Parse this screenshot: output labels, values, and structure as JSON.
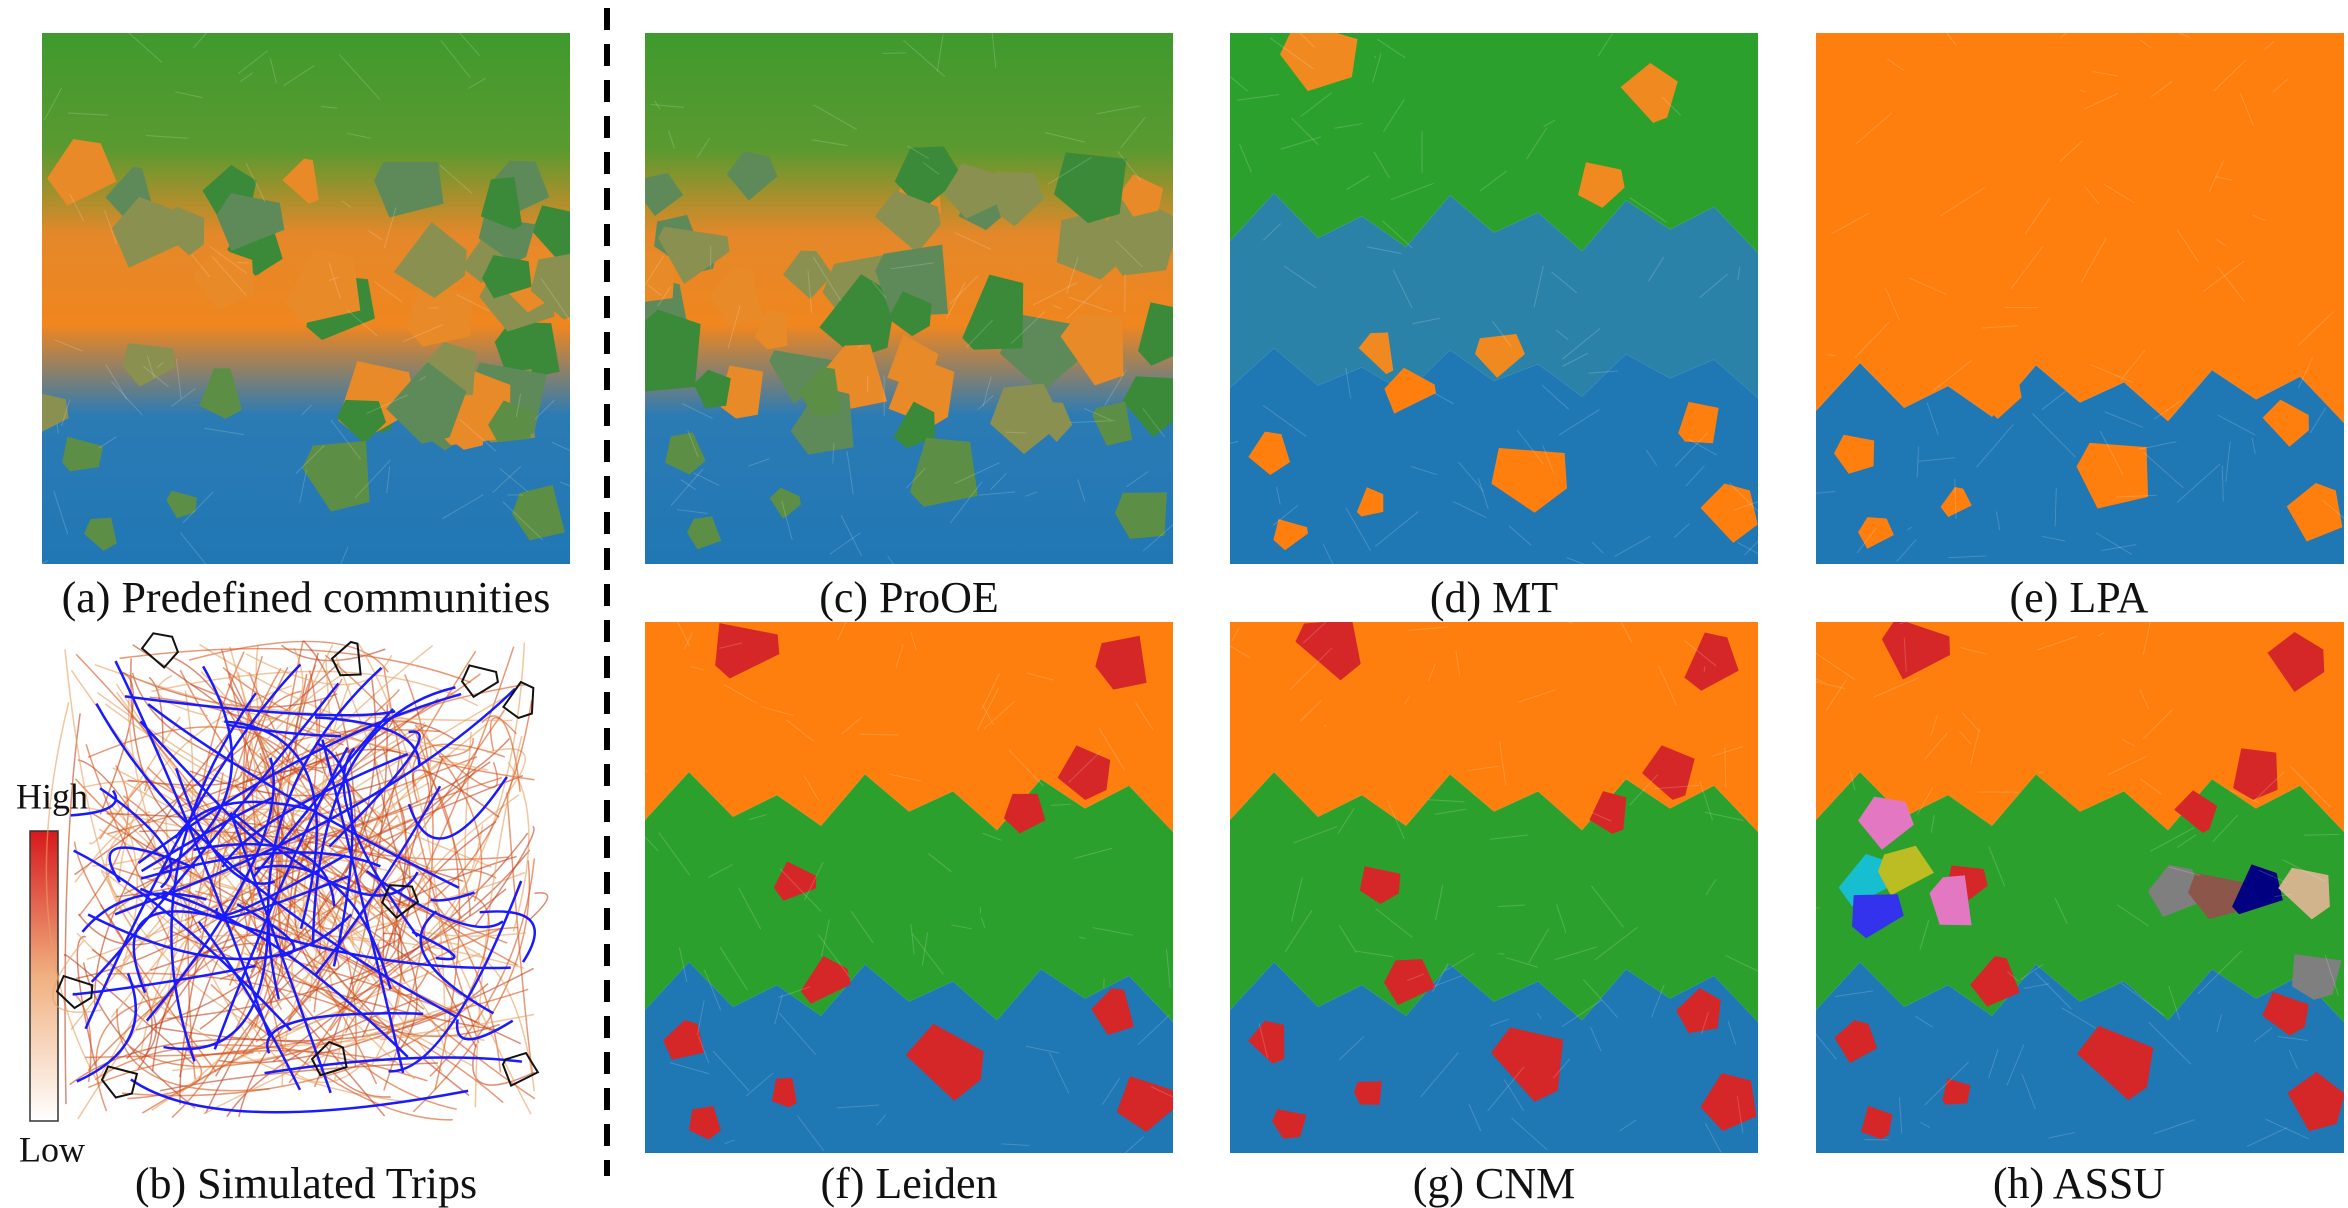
{
  "panels": [
    {
      "caption": "(a) Predefined communities"
    },
    {
      "caption": "(b) Simulated Trips"
    },
    {
      "caption": "(c) ProOE"
    },
    {
      "caption": "(d) MT"
    },
    {
      "caption": "(e) LPA"
    },
    {
      "caption": "(f) Leiden"
    },
    {
      "caption": "(g) CNM"
    },
    {
      "caption": "(h) ASSU"
    }
  ],
  "legend": {
    "high": "High",
    "low": "Low"
  }
}
